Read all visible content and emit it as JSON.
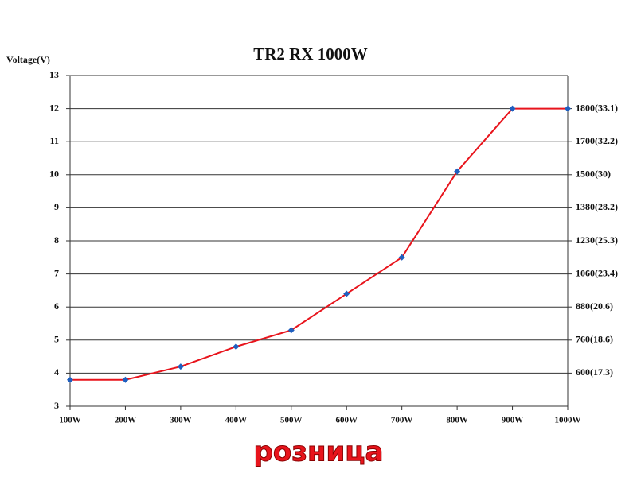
{
  "chart_data": {
    "type": "line",
    "title": "TR2 RX 1000W",
    "y_label": "Voltage(V)",
    "categories": [
      "100W",
      "200W",
      "300W",
      "400W",
      "500W",
      "600W",
      "700W",
      "800W",
      "900W",
      "1000W"
    ],
    "series": [
      {
        "name": "Voltage",
        "color": "#e8141c",
        "marker_color": "#1f5fbf",
        "values": [
          3.8,
          3.8,
          4.2,
          4.8,
          5.3,
          6.4,
          7.5,
          10.1,
          12,
          12
        ]
      }
    ],
    "ylim": [
      3,
      13
    ],
    "yticks": [
      3,
      4,
      5,
      6,
      7,
      8,
      9,
      10,
      11,
      12,
      13
    ],
    "y2lim": [
      3,
      13
    ],
    "y2ticks": [
      {
        "value": 4,
        "label": "600(17.3)"
      },
      {
        "value": 5,
        "label": "760(18.6)"
      },
      {
        "value": 6,
        "label": "880(20.6)"
      },
      {
        "value": 7,
        "label": "1060(23.4)"
      },
      {
        "value": 8,
        "label": "1230(25.3)"
      },
      {
        "value": 9,
        "label": "1380(28.2)"
      },
      {
        "value": 10,
        "label": "1500(30)"
      },
      {
        "value": 11,
        "label": "1700(32.2)"
      },
      {
        "value": 12,
        "label": "1800(33.1)"
      }
    ],
    "grid": true
  },
  "watermark": "розница"
}
